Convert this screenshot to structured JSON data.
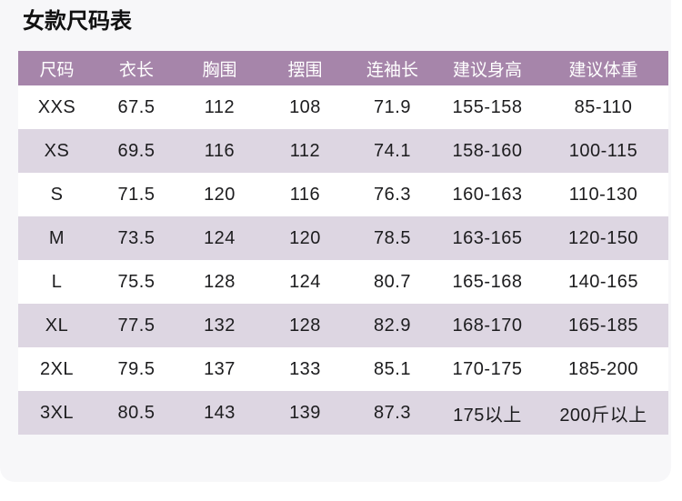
{
  "title": "女款尺码表",
  "table": {
    "headers": [
      "尺码",
      "衣长",
      "胸围",
      "摆围",
      "连袖长",
      "建议身高",
      "建议体重"
    ],
    "rows": [
      [
        "XXS",
        "67.5",
        "112",
        "108",
        "71.9",
        "155-158",
        "85-110"
      ],
      [
        "XS",
        "69.5",
        "116",
        "112",
        "74.1",
        "158-160",
        "100-115"
      ],
      [
        "S",
        "71.5",
        "120",
        "116",
        "76.3",
        "160-163",
        "110-130"
      ],
      [
        "M",
        "73.5",
        "124",
        "120",
        "78.5",
        "163-165",
        "120-150"
      ],
      [
        "L",
        "75.5",
        "128",
        "124",
        "80.7",
        "165-168",
        "140-165"
      ],
      [
        "XL",
        "77.5",
        "132",
        "128",
        "82.9",
        "168-170",
        "165-185"
      ],
      [
        "2XL",
        "79.5",
        "137",
        "133",
        "85.1",
        "170-175",
        "185-200"
      ],
      [
        "3XL",
        "80.5",
        "143",
        "139",
        "87.3",
        "175以上",
        "200斤以上"
      ]
    ]
  },
  "colors": {
    "header_bg": "#a685aa",
    "header_text": "#ffffff",
    "row_bg": "#ffffff",
    "row_alt_bg": "#ddd6e2",
    "card_bg": "#f7f7f9",
    "text": "#1c1c1e",
    "title_text": "#111111"
  },
  "chart_data": {
    "type": "table",
    "title": "女款尺码表",
    "columns": [
      "尺码",
      "衣长",
      "胸围",
      "摆围",
      "连袖长",
      "建议身高",
      "建议体重"
    ],
    "rows": [
      [
        "XXS",
        67.5,
        112,
        108,
        71.9,
        "155-158",
        "85-110"
      ],
      [
        "XS",
        69.5,
        116,
        112,
        74.1,
        "158-160",
        "100-115"
      ],
      [
        "S",
        71.5,
        120,
        116,
        76.3,
        "160-163",
        "110-130"
      ],
      [
        "M",
        73.5,
        124,
        120,
        78.5,
        "163-165",
        "120-150"
      ],
      [
        "L",
        75.5,
        128,
        124,
        80.7,
        "165-168",
        "140-165"
      ],
      [
        "XL",
        77.5,
        132,
        128,
        82.9,
        "168-170",
        "165-185"
      ],
      [
        "2XL",
        79.5,
        137,
        133,
        85.1,
        "170-175",
        "185-200"
      ],
      [
        "3XL",
        80.5,
        143,
        139,
        87.3,
        "175以上",
        "200斤以上"
      ]
    ],
    "layout_hints": {
      "header_style": "purple band, white centered text",
      "zebra_striping": "white / light lavender alternating, starting white",
      "alignment": "all cells centered"
    }
  }
}
